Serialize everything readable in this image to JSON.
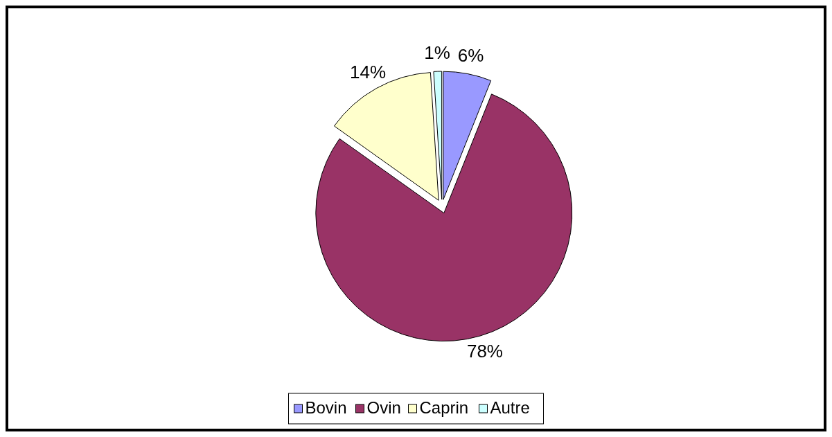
{
  "chart_data": {
    "type": "pie",
    "categories": [
      "Bovin",
      "Ovin",
      "Caprin",
      "Autre"
    ],
    "values": [
      6,
      78,
      14,
      1
    ],
    "colors": [
      "#9999ff",
      "#993366",
      "#ffffcc",
      "#ccffff"
    ],
    "value_labels": [
      "6%",
      "78%",
      "14%",
      "1%"
    ],
    "legend": "bottom"
  }
}
